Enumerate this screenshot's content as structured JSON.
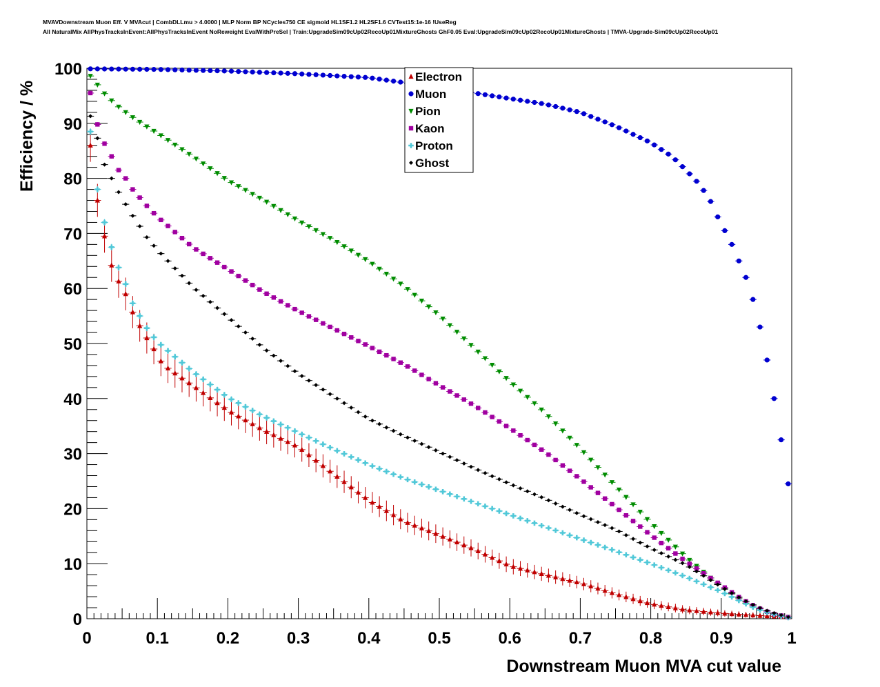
{
  "header": {
    "line1": "MVAVDownstream Muon Eff. V MVAcut | CombDLLmu > 4.0000 | MLP Norm BP NCycles750 CE sigmoid HL1SF1.2 HL2SF1.6 CVTest15:1e-16 !UseReg",
    "line2": "All NaturalMix AllPhysTracksInEvent:AllPhysTracksInEvent NoReweight EvalWithPreSel | Train:UpgradeSim09cUp02RecoUp01MixtureGhosts GhF0.05 Eval:UpgradeSim09cUp02RecoUp01MixtureGhosts | TMVA-Upgrade-Sim09cUp02RecoUp01"
  },
  "chart_data": {
    "type": "scatter",
    "xlabel": "Downstream Muon MVA cut value",
    "ylabel": "Efficiency / %",
    "xlim": [
      0,
      1
    ],
    "ylim": [
      0,
      100
    ],
    "x_ticks": [
      "0",
      "0.1",
      "0.2",
      "0.3",
      "0.4",
      "0.5",
      "0.6",
      "0.7",
      "0.8",
      "0.9",
      "1"
    ],
    "y_ticks": [
      "0",
      "10",
      "20",
      "30",
      "40",
      "50",
      "60",
      "70",
      "80",
      "90",
      "100"
    ],
    "legend_position": "top-center",
    "grid": false,
    "n_points": 100,
    "series": [
      {
        "name": "Electron",
        "color": "#c00000",
        "marker": "triangle-up",
        "knots": [
          [
            0.005,
            86
          ],
          [
            0.015,
            76
          ],
          [
            0.025,
            69.5
          ],
          [
            0.035,
            64.2
          ],
          [
            0.045,
            61.3
          ],
          [
            0.055,
            59
          ],
          [
            0.065,
            55.7
          ],
          [
            0.075,
            53.2
          ],
          [
            0.085,
            51
          ],
          [
            0.095,
            49
          ],
          [
            0.105,
            46.8
          ],
          [
            0.115,
            45.5
          ],
          [
            0.135,
            43.7
          ],
          [
            0.16,
            41.5
          ],
          [
            0.185,
            39.2
          ],
          [
            0.205,
            37.5
          ],
          [
            0.25,
            34.3
          ],
          [
            0.3,
            31.2
          ],
          [
            0.35,
            26.3
          ],
          [
            0.4,
            21.5
          ],
          [
            0.45,
            17.7
          ],
          [
            0.5,
            15.2
          ],
          [
            0.55,
            12.6
          ],
          [
            0.6,
            9.6
          ],
          [
            0.65,
            8
          ],
          [
            0.7,
            6.5
          ],
          [
            0.75,
            4.5
          ],
          [
            0.8,
            2.7
          ],
          [
            0.85,
            1.6
          ],
          [
            0.9,
            1
          ],
          [
            0.95,
            0.6
          ],
          [
            0.995,
            0.3
          ]
        ],
        "err_knots": [
          [
            0.005,
            3
          ],
          [
            0.05,
            3
          ],
          [
            0.15,
            2.5
          ],
          [
            0.3,
            2.2
          ],
          [
            0.45,
            1.8
          ],
          [
            0.6,
            1.4
          ],
          [
            0.75,
            1
          ],
          [
            0.9,
            0.6
          ],
          [
            0.995,
            0.4
          ]
        ]
      },
      {
        "name": "Muon",
        "color": "#0000d0",
        "marker": "circle",
        "knots": [
          [
            0.005,
            99.9
          ],
          [
            0.1,
            99.8
          ],
          [
            0.2,
            99.5
          ],
          [
            0.3,
            99
          ],
          [
            0.4,
            98.3
          ],
          [
            0.5,
            96.5
          ],
          [
            0.55,
            95.5
          ],
          [
            0.6,
            94.5
          ],
          [
            0.65,
            93.5
          ],
          [
            0.7,
            92
          ],
          [
            0.75,
            89.5
          ],
          [
            0.8,
            86.5
          ],
          [
            0.83,
            84
          ],
          [
            0.85,
            81.5
          ],
          [
            0.87,
            78.8
          ],
          [
            0.885,
            75.8
          ],
          [
            0.895,
            73
          ],
          [
            0.905,
            70.5
          ],
          [
            0.915,
            68
          ],
          [
            0.925,
            65
          ],
          [
            0.935,
            62
          ],
          [
            0.945,
            58
          ],
          [
            0.955,
            53
          ],
          [
            0.965,
            47
          ],
          [
            0.975,
            40
          ],
          [
            0.985,
            32.5
          ],
          [
            0.995,
            24.5
          ]
        ],
        "err_knots": [
          [
            0,
            0.2
          ],
          [
            1,
            0.3
          ]
        ]
      },
      {
        "name": "Pion",
        "color": "#008c00",
        "marker": "triangle-down",
        "knots": [
          [
            0.005,
            98.6
          ],
          [
            0.015,
            97
          ],
          [
            0.025,
            95.4
          ],
          [
            0.04,
            93.5
          ],
          [
            0.06,
            91.5
          ],
          [
            0.08,
            89.8
          ],
          [
            0.1,
            88.2
          ],
          [
            0.15,
            84
          ],
          [
            0.2,
            79.6
          ],
          [
            0.25,
            76.1
          ],
          [
            0.3,
            72.3
          ],
          [
            0.35,
            68.8
          ],
          [
            0.4,
            64.9
          ],
          [
            0.45,
            60.4
          ],
          [
            0.5,
            55.1
          ],
          [
            0.55,
            49.1
          ],
          [
            0.6,
            43.1
          ],
          [
            0.65,
            37.4
          ],
          [
            0.7,
            30.9
          ],
          [
            0.75,
            24.1
          ],
          [
            0.8,
            17.4
          ],
          [
            0.85,
            11.2
          ],
          [
            0.9,
            5.8
          ],
          [
            0.93,
            3.2
          ],
          [
            0.95,
            1.8
          ],
          [
            0.97,
            0.9
          ],
          [
            0.995,
            0.3
          ]
        ],
        "err_knots": [
          [
            0,
            0.3
          ],
          [
            1,
            0.3
          ]
        ]
      },
      {
        "name": "Kaon",
        "color": "#a000a0",
        "marker": "square",
        "knots": [
          [
            0.005,
            95.5
          ],
          [
            0.015,
            89.8
          ],
          [
            0.025,
            86.3
          ],
          [
            0.035,
            84
          ],
          [
            0.045,
            81.5
          ],
          [
            0.055,
            80
          ],
          [
            0.065,
            78
          ],
          [
            0.075,
            76.5
          ],
          [
            0.085,
            75
          ],
          [
            0.1,
            73
          ],
          [
            0.15,
            67.5
          ],
          [
            0.2,
            63.5
          ],
          [
            0.25,
            59.4
          ],
          [
            0.3,
            55.9
          ],
          [
            0.35,
            52.7
          ],
          [
            0.4,
            49.5
          ],
          [
            0.45,
            46.2
          ],
          [
            0.5,
            42.4
          ],
          [
            0.55,
            38.7
          ],
          [
            0.6,
            34.6
          ],
          [
            0.65,
            30.3
          ],
          [
            0.7,
            25.4
          ],
          [
            0.75,
            20.3
          ],
          [
            0.8,
            15.2
          ],
          [
            0.85,
            10.4
          ],
          [
            0.9,
            6.1
          ],
          [
            0.93,
            3.5
          ],
          [
            0.95,
            2.1
          ],
          [
            0.97,
            1
          ],
          [
            0.995,
            0.3
          ]
        ],
        "err_knots": [
          [
            0,
            0.4
          ],
          [
            1,
            0.3
          ]
        ]
      },
      {
        "name": "Proton",
        "color": "#50c8d8",
        "marker": "cross",
        "knots": [
          [
            0.005,
            88.5
          ],
          [
            0.015,
            78
          ],
          [
            0.025,
            72
          ],
          [
            0.035,
            67.5
          ],
          [
            0.045,
            63.8
          ],
          [
            0.055,
            60.8
          ],
          [
            0.065,
            57.3
          ],
          [
            0.075,
            55
          ],
          [
            0.085,
            52.8
          ],
          [
            0.1,
            50.3
          ],
          [
            0.15,
            44.9
          ],
          [
            0.2,
            40.2
          ],
          [
            0.25,
            36.8
          ],
          [
            0.3,
            33.8
          ],
          [
            0.35,
            30.8
          ],
          [
            0.4,
            28
          ],
          [
            0.45,
            25.5
          ],
          [
            0.5,
            23.3
          ],
          [
            0.55,
            21.1
          ],
          [
            0.6,
            18.9
          ],
          [
            0.65,
            16.7
          ],
          [
            0.7,
            14.5
          ],
          [
            0.75,
            12.3
          ],
          [
            0.8,
            10
          ],
          [
            0.85,
            7.6
          ],
          [
            0.9,
            4.9
          ],
          [
            0.93,
            3
          ],
          [
            0.95,
            1.8
          ],
          [
            0.97,
            0.9
          ],
          [
            0.995,
            0.2
          ]
        ],
        "err_knots": [
          [
            0,
            0.6
          ],
          [
            1,
            0.3
          ]
        ]
      },
      {
        "name": "Ghost",
        "color": "#000000",
        "marker": "diamond",
        "knots": [
          [
            0.005,
            91.3
          ],
          [
            0.015,
            87.3
          ],
          [
            0.025,
            82.5
          ],
          [
            0.035,
            80
          ],
          [
            0.045,
            77.5
          ],
          [
            0.055,
            75.3
          ],
          [
            0.065,
            73.2
          ],
          [
            0.075,
            71.3
          ],
          [
            0.085,
            69.3
          ],
          [
            0.1,
            67
          ],
          [
            0.15,
            60.3
          ],
          [
            0.2,
            54.8
          ],
          [
            0.25,
            49.2
          ],
          [
            0.3,
            44.5
          ],
          [
            0.35,
            40.4
          ],
          [
            0.4,
            36.3
          ],
          [
            0.45,
            33.2
          ],
          [
            0.5,
            30.3
          ],
          [
            0.55,
            27.3
          ],
          [
            0.6,
            24.5
          ],
          [
            0.65,
            21.8
          ],
          [
            0.7,
            18.9
          ],
          [
            0.75,
            16.2
          ],
          [
            0.8,
            12.8
          ],
          [
            0.85,
            9.8
          ],
          [
            0.9,
            5.8
          ],
          [
            0.93,
            3.5
          ],
          [
            0.95,
            2.2
          ],
          [
            0.97,
            1.2
          ],
          [
            0.995,
            0.3
          ]
        ],
        "err_knots": [
          [
            0,
            0.3
          ],
          [
            1,
            0.2
          ]
        ]
      }
    ]
  }
}
